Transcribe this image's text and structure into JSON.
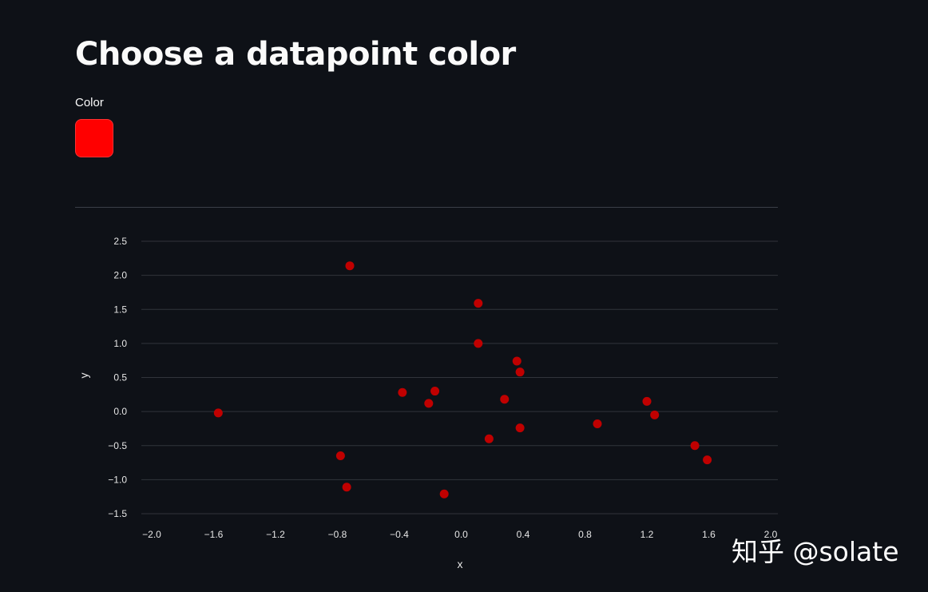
{
  "header": {
    "title": "Choose a datapoint color"
  },
  "color_picker": {
    "label": "Color",
    "value": "#ff0000"
  },
  "watermark": {
    "text": "知乎 @solate"
  },
  "chart_data": {
    "type": "scatter",
    "title": "",
    "xlabel": "x",
    "ylabel": "y",
    "xlim": [
      -2.0,
      2.0
    ],
    "ylim": [
      -1.5,
      2.5
    ],
    "x_ticks": [
      "−2.0",
      "−1.6",
      "−1.2",
      "−0.8",
      "−0.4",
      "0.0",
      "0.4",
      "0.8",
      "1.2",
      "1.6",
      "2.0"
    ],
    "y_ticks": [
      "−1.5",
      "−1.0",
      "−0.5",
      "0.0",
      "0.5",
      "1.0",
      "1.5",
      "2.0",
      "2.5"
    ],
    "grid": "horizontal",
    "point_color": "#c00000",
    "series": [
      {
        "x": [
          -1.57,
          -0.72,
          0.11,
          0.11,
          0.36,
          0.38,
          -0.38,
          -0.17,
          -0.21,
          0.28,
          -0.78,
          -0.74,
          -0.11,
          0.18,
          0.38,
          0.88,
          1.2,
          1.25,
          1.51,
          1.59
        ],
        "y": [
          -0.02,
          2.14,
          1.59,
          1.0,
          0.74,
          0.58,
          0.28,
          0.3,
          0.12,
          0.18,
          -0.65,
          -1.11,
          -1.21,
          -0.4,
          -0.24,
          -0.18,
          0.15,
          -0.05,
          -0.5,
          -0.71
        ]
      }
    ]
  }
}
